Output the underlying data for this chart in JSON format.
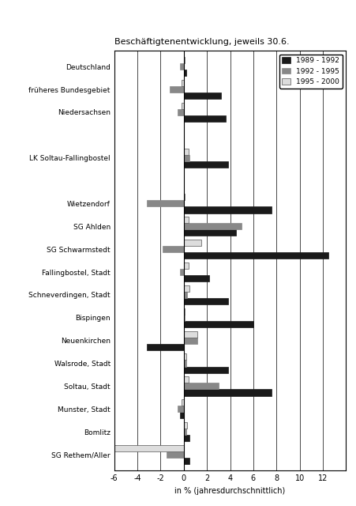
{
  "title": "Beschäftigtenentwicklung, jeweils 30.6.",
  "xlabel": "in % (jahresdurchschnittlich)",
  "categories": [
    "Deutschland",
    "früheres Bundesgebiet",
    "Niedersachsen",
    "",
    "LK Soltau-Fallingbostel",
    "",
    "Wietzendorf",
    "SG Ahlden",
    "SG Schwarmstedt",
    "Fallingbostel, Stadt",
    "Schneverdingen, Stadt",
    "Bispingen",
    "Neuenkirchen",
    "Walsrode, Stadt",
    "Soltau, Stadt",
    "Munster, Stadt",
    "Bomlitz",
    "SG Rethem/Aller"
  ],
  "series": [
    {
      "name": "1989 - 1992",
      "color": "#1a1a1a",
      "values": [
        0.2,
        3.2,
        3.6,
        null,
        3.8,
        null,
        7.6,
        4.5,
        12.5,
        2.2,
        3.8,
        6.0,
        -3.2,
        3.8,
        7.6,
        -0.3,
        0.5,
        0.5
      ]
    },
    {
      "name": "1992 - 1995",
      "color": "#888888",
      "values": [
        -0.3,
        -1.2,
        -0.5,
        null,
        0.5,
        null,
        -3.2,
        5.0,
        -1.8,
        -0.3,
        0.3,
        0.1,
        1.2,
        0.2,
        3.0,
        -0.5,
        0.2,
        -1.5
      ]
    },
    {
      "name": "1995 - 2000",
      "color": "#dddddd",
      "values": [
        0.1,
        -0.2,
        -0.2,
        null,
        0.4,
        null,
        0.1,
        0.4,
        1.5,
        0.4,
        0.5,
        0.1,
        1.2,
        0.2,
        0.4,
        -0.2,
        0.3,
        -6.0
      ]
    }
  ],
  "xlim": [
    -6,
    14
  ],
  "xticks": [
    -6,
    -4,
    -2,
    0,
    2,
    4,
    6,
    8,
    10,
    12
  ],
  "bar_height": 0.28,
  "figure_width": 4.52,
  "figure_height": 6.4,
  "dpi": 100,
  "bg_color": "#ffffff",
  "legend_colors": [
    "#1a1a1a",
    "#888888",
    "#dddddd"
  ],
  "legend_labels": [
    "1989 - 1992",
    "1992 - 1995",
    "1995 - 2000"
  ]
}
